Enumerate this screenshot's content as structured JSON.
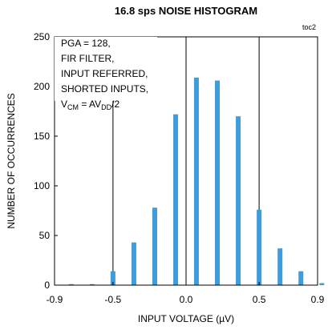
{
  "chart_data": {
    "type": "bar",
    "title": "16.8 sps NOISE HISTOGRAM",
    "figure_id": "toc2",
    "xlabel": "INPUT VOLTAGE (µV)",
    "ylabel": "NUMBER OF OCCURRENCES",
    "xlim": [
      -0.9,
      0.9
    ],
    "ylim": [
      0,
      250
    ],
    "xticks": [
      -0.9,
      -0.5,
      0.0,
      0.5,
      0.9
    ],
    "xtick_labels": [
      "-0.9",
      "-0.5",
      "0.0",
      "0.5",
      "0.9"
    ],
    "yticks": [
      0,
      50,
      100,
      150,
      200,
      250
    ],
    "ytick_labels": [
      "0",
      "50",
      "100",
      "150",
      "200",
      "250"
    ],
    "grid": "x-only",
    "bar_color": "#3f9ddb",
    "x": [
      -0.786,
      -0.643,
      -0.5,
      -0.357,
      -0.214,
      -0.071,
      0.071,
      0.214,
      0.357,
      0.5,
      0.643,
      0.786,
      0.929
    ],
    "values": [
      1,
      1,
      14,
      43,
      78,
      172,
      209,
      206,
      170,
      76,
      37,
      14,
      2
    ],
    "annotation": {
      "lines": [
        "PGA = 128,",
        "FIR FILTER,",
        "INPUT REFERRED,",
        "SHORTED INPUTS,"
      ],
      "vcm_base": "V",
      "vcm_sub": "CM",
      "vcm_eq": " = AV",
      "vcm_sub2": "DD",
      "vcm_tail": "/2"
    }
  }
}
